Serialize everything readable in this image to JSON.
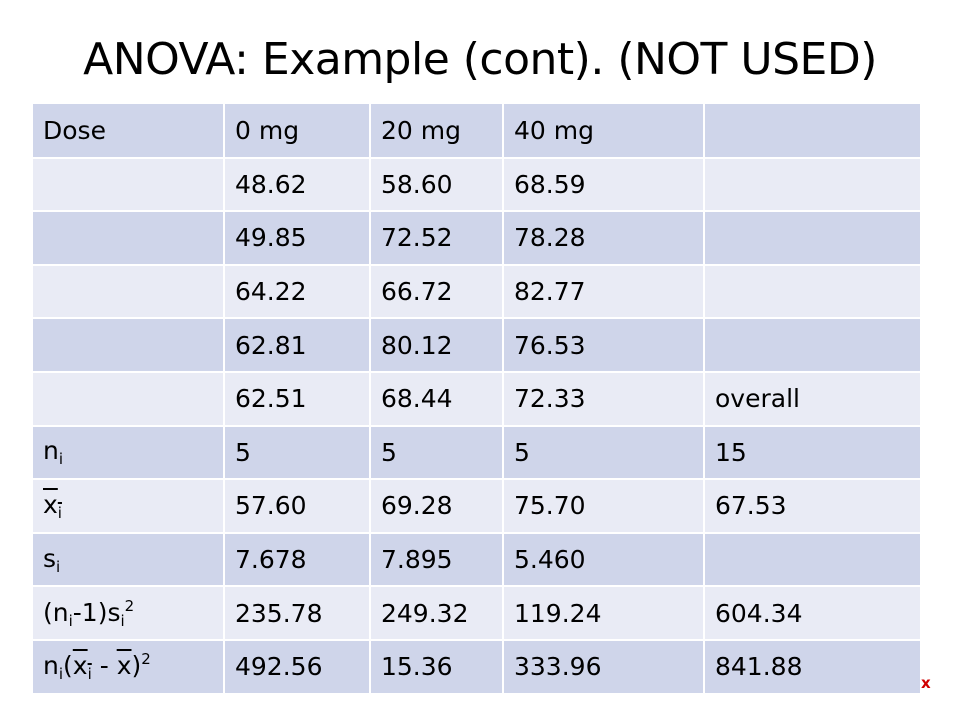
{
  "title": "ANOVA: Example (cont). (NOT USED)",
  "header": [
    "Dose",
    "0 mg",
    "20 mg",
    "40 mg",
    ""
  ],
  "observations": [
    [
      "",
      "48.62",
      "58.60",
      "68.59",
      ""
    ],
    [
      "",
      "49.85",
      "72.52",
      "78.28",
      ""
    ],
    [
      "",
      "64.22",
      "66.72",
      "82.77",
      ""
    ],
    [
      "",
      "62.81",
      "80.12",
      "76.53",
      ""
    ],
    [
      "",
      "62.51",
      "68.44",
      "72.33",
      "overall"
    ]
  ],
  "stats": {
    "n": {
      "label_main": "n",
      "label_sub": "i",
      "values": [
        "5",
        "5",
        "5",
        "15"
      ]
    },
    "mean": {
      "label_main": "x",
      "label_sub": "i",
      "values": [
        "57.60",
        "69.28",
        "75.70",
        "67.53"
      ]
    },
    "sd": {
      "label_main": "s",
      "label_sub": "i",
      "values": [
        "7.678",
        "7.895",
        "5.460",
        ""
      ]
    },
    "ss_within": {
      "label_open": "(n",
      "label_sub1": "i",
      "label_mid": "-1)s",
      "label_sub2": "i",
      "label_sup": "2",
      "values": [
        "235.78",
        "249.32",
        "119.24",
        "604.34"
      ]
    },
    "ss_between": {
      "label_n": "n",
      "label_sub1": "i",
      "label_paren": "(",
      "label_x1": "x",
      "label_sub2": "i",
      "label_minus": " - ",
      "label_x2": "x",
      "label_close": ")",
      "label_sup": "2",
      "values": [
        "492.56",
        "15.36",
        "333.96",
        "841.88"
      ]
    }
  },
  "corner_mark": "x",
  "colors": {
    "band_dark": "#cfd5ea",
    "band_light": "#e9ebf5",
    "mark": "#d00000"
  }
}
